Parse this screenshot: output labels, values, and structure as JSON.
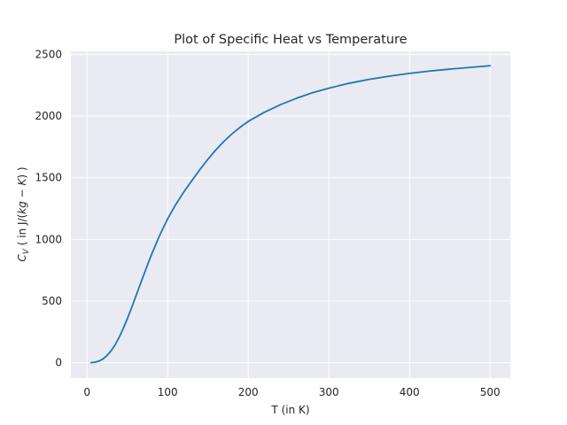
{
  "chart_data": {
    "type": "line",
    "title": "Plot of Specific Heat vs Temperature",
    "xlabel": "T (in K)",
    "ylabel": {
      "symbol": "C",
      "subscript": "V",
      "open": " ( in J/(",
      "unit_italic": "kg − K",
      "close": ") )"
    },
    "xlim": [
      -20,
      525
    ],
    "ylim": [
      -125,
      2525
    ],
    "xticks": [
      0,
      100,
      200,
      300,
      400,
      500
    ],
    "yticks": [
      0,
      500,
      1000,
      1500,
      2000,
      2500
    ],
    "grid": true,
    "colors": {
      "background": "#eaeaf2",
      "grid": "#ffffff",
      "line": "#1f77b4"
    },
    "series": [
      {
        "x": [
          5,
          10,
          15,
          20,
          25,
          30,
          35,
          40,
          45,
          50,
          55,
          60,
          65,
          70,
          75,
          80,
          90,
          100,
          110,
          120,
          130,
          140,
          150,
          160,
          170,
          180,
          190,
          200,
          220,
          240,
          260,
          280,
          300,
          325,
          350,
          375,
          400,
          425,
          450,
          475,
          500
        ],
        "values": [
          0,
          4,
          13,
          31,
          59,
          97,
          146,
          207,
          278,
          356,
          440,
          528,
          617,
          705,
          792,
          876,
          1031,
          1166,
          1282,
          1384,
          1476,
          1566,
          1650,
          1727,
          1796,
          1857,
          1910,
          1957,
          2031,
          2093,
          2145,
          2190,
          2226,
          2266,
          2298,
          2324,
          2346,
          2365,
          2381,
          2395,
          2408
        ]
      }
    ]
  }
}
